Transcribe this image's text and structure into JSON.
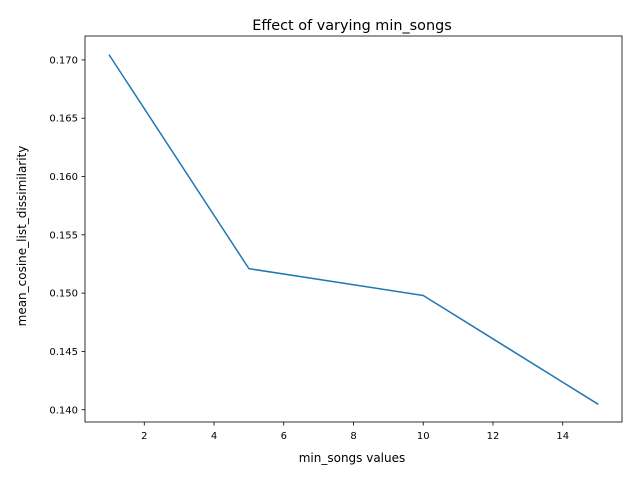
{
  "chart_data": {
    "type": "line",
    "title": "Effect of varying min_songs",
    "xlabel": "min_songs values",
    "ylabel": "mean_cosine_list_dissimilarity",
    "xlim": [
      0.3,
      15.7
    ],
    "ylim": [
      0.13895,
      0.17205
    ],
    "x_ticks": [
      2,
      4,
      6,
      8,
      10,
      12,
      14
    ],
    "x_tick_labels": [
      "2",
      "4",
      "6",
      "8",
      "10",
      "12",
      "14"
    ],
    "y_ticks": [
      0.14,
      0.145,
      0.15,
      0.155,
      0.16,
      0.165,
      0.17
    ],
    "y_tick_labels": [
      "0.140",
      "0.145",
      "0.150",
      "0.155",
      "0.160",
      "0.165",
      "0.170"
    ],
    "grid": false,
    "legend": "none",
    "series": [
      {
        "color": "#1f77b4",
        "x": [
          1,
          5,
          10,
          15
        ],
        "y": [
          0.1704,
          0.1521,
          0.1498,
          0.1405
        ]
      }
    ]
  }
}
